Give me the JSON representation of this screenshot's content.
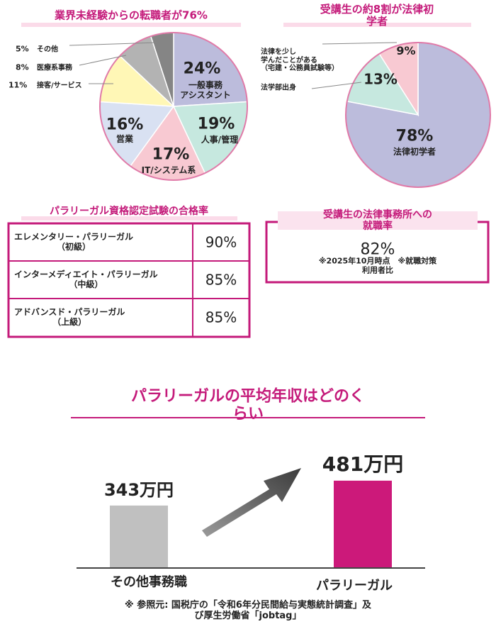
{
  "chart_data": [
    {
      "type": "pie",
      "title": "業界未経験からの転職者が76%",
      "categories": [
        "一般事務\nアシスタント",
        "人事/管理",
        "IT/システム系",
        "営業",
        "接客/サービス",
        "医療系事務",
        "その他"
      ],
      "values": [
        24,
        19,
        17,
        16,
        11,
        8,
        5
      ],
      "value_labels": [
        "24%",
        "19%",
        "17%",
        "16%",
        "11%",
        "8%",
        "5%"
      ],
      "colors": [
        "#bcbcdc",
        "#c6e8df",
        "#f8c9d2",
        "#d9e1f2",
        "#fff7b6",
        "#b3b3b3",
        "#858585"
      ]
    },
    {
      "type": "pie",
      "title": "受講生の約8割が法律初学者",
      "categories": [
        "法律初学者",
        "法学部出身",
        "法律を少し\n学んだことがある\n（宅建・公務員試験等）"
      ],
      "values": [
        78,
        13,
        9
      ],
      "value_labels": [
        "78%",
        "13%",
        "9%"
      ],
      "colors": [
        "#bcbcdc",
        "#c6e8df",
        "#f8c9d2"
      ]
    },
    {
      "type": "bar",
      "title": "パラリーガルの平均年収はどのくらい",
      "categories": [
        "その他事務職",
        "パラリーガル"
      ],
      "values": [
        343,
        481
      ],
      "value_labels": [
        "343万円",
        "481万円"
      ],
      "colors": [
        "#c0c0c0",
        "#cc197a"
      ]
    }
  ],
  "table": {
    "title": "パラリーガル資格認定試験の合格率",
    "rows": [
      [
        "エレメンタリー・パラリーガル\n（初級）",
        "90%"
      ],
      [
        "インターメディエイト・パラリーガル\n（中級）",
        "85%"
      ],
      [
        "アドバンスド・パラリーガル\n（上級）",
        "85%"
      ]
    ]
  },
  "employment": {
    "title": "受講生の法律事務所への就職率",
    "value": "82%",
    "note": "※2025年10月時点　※就職対策利用者比"
  },
  "source": "※ 参照元: 国税庁の「令和6年分民間給与実態統計調査」及び厚生労働省「jobtag」"
}
